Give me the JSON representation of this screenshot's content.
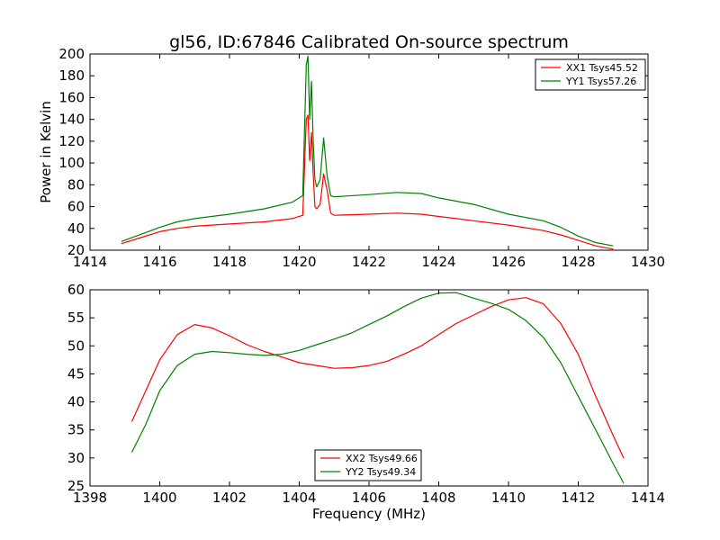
{
  "figure_title": "gl56, ID:67846 Calibrated On-source spectrum",
  "chart_data": [
    {
      "type": "line",
      "title": "gl56, ID:67846 Calibrated On-source spectrum",
      "xlabel": "",
      "ylabel": "Power in Kelvin",
      "xlim": [
        1414,
        1430
      ],
      "ylim": [
        20,
        200
      ],
      "xticks": [
        1414,
        1416,
        1418,
        1420,
        1422,
        1424,
        1426,
        1428,
        1430
      ],
      "yticks": [
        20,
        40,
        60,
        80,
        100,
        120,
        140,
        160,
        180,
        200
      ],
      "grid": false,
      "legend_position": "top-right",
      "series": [
        {
          "name": "XX1 Tsys45.52",
          "color": "#ff0000",
          "x": [
            1414.9,
            1415.5,
            1416.0,
            1416.5,
            1417.0,
            1418.0,
            1419.0,
            1419.8,
            1420.1,
            1420.2,
            1420.25,
            1420.3,
            1420.35,
            1420.4,
            1420.45,
            1420.5,
            1420.6,
            1420.7,
            1420.8,
            1420.9,
            1421.0,
            1422.0,
            1422.8,
            1423.5,
            1424.0,
            1425.0,
            1426.0,
            1427.0,
            1427.5,
            1428.0,
            1428.5,
            1429.0
          ],
          "y": [
            26,
            32,
            37,
            40,
            42,
            44,
            46,
            49,
            52,
            140,
            144,
            102,
            128,
            90,
            60,
            58,
            62,
            90,
            75,
            54,
            52,
            53,
            54,
            53,
            51,
            47,
            43,
            38,
            34,
            29,
            24,
            21
          ]
        },
        {
          "name": "YY1 Tsys57.26",
          "color": "#008000",
          "x": [
            1414.9,
            1415.5,
            1416.0,
            1416.5,
            1417.0,
            1418.0,
            1419.0,
            1419.8,
            1420.1,
            1420.2,
            1420.25,
            1420.3,
            1420.35,
            1420.4,
            1420.45,
            1420.5,
            1420.6,
            1420.7,
            1420.8,
            1420.9,
            1421.0,
            1422.0,
            1422.8,
            1423.5,
            1424.0,
            1425.0,
            1426.0,
            1427.0,
            1427.5,
            1428.0,
            1428.5,
            1429.0
          ],
          "y": [
            28,
            35,
            41,
            46,
            49,
            53,
            58,
            64,
            70,
            190,
            198,
            140,
            175,
            120,
            85,
            78,
            85,
            123,
            88,
            70,
            69,
            71,
            73,
            72,
            68,
            62,
            53,
            47,
            41,
            33,
            27,
            24
          ]
        }
      ]
    },
    {
      "type": "line",
      "title": "",
      "xlabel": "Frequency (MHz)",
      "ylabel": "",
      "xlim": [
        1398,
        1414
      ],
      "ylim": [
        25,
        60
      ],
      "xticks": [
        1398,
        1400,
        1402,
        1404,
        1406,
        1408,
        1410,
        1412,
        1414
      ],
      "yticks": [
        25,
        30,
        35,
        40,
        45,
        50,
        55,
        60
      ],
      "grid": false,
      "legend_position": "bottom-center",
      "series": [
        {
          "name": "XX2 Tsys49.66",
          "color": "#ff0000",
          "x": [
            1399.2,
            1399.6,
            1400.0,
            1400.5,
            1401.0,
            1401.5,
            1402.0,
            1402.5,
            1403.0,
            1403.5,
            1404.0,
            1404.5,
            1405.0,
            1405.5,
            1406.0,
            1406.5,
            1407.0,
            1407.5,
            1408.0,
            1408.5,
            1409.0,
            1409.5,
            1410.0,
            1410.5,
            1411.0,
            1411.5,
            1412.0,
            1412.5,
            1413.0,
            1413.3
          ],
          "y": [
            36.5,
            42,
            47.5,
            52,
            53.8,
            53.2,
            51.8,
            50.2,
            49.0,
            48.0,
            47.0,
            46.5,
            46.0,
            46.1,
            46.5,
            47.2,
            48.5,
            50.0,
            52.0,
            54.0,
            55.5,
            57.0,
            58.2,
            58.6,
            57.5,
            54.0,
            48.5,
            41.0,
            34.0,
            30.0
          ]
        },
        {
          "name": "YY2 Tsys49.34",
          "color": "#008000",
          "x": [
            1399.2,
            1399.6,
            1400.0,
            1400.5,
            1401.0,
            1401.5,
            1402.0,
            1402.5,
            1403.0,
            1403.5,
            1404.0,
            1404.5,
            1405.0,
            1405.5,
            1406.0,
            1406.5,
            1407.0,
            1407.5,
            1408.0,
            1408.5,
            1409.0,
            1409.5,
            1410.0,
            1410.5,
            1411.0,
            1411.5,
            1412.0,
            1412.5,
            1413.0,
            1413.3
          ],
          "y": [
            31,
            36,
            42,
            46.5,
            48.5,
            49.0,
            48.8,
            48.5,
            48.3,
            48.5,
            49.2,
            50.2,
            51.2,
            52.3,
            53.8,
            55.3,
            57.0,
            58.5,
            59.4,
            59.5,
            58.5,
            57.6,
            56.5,
            54.5,
            51.5,
            47.0,
            41.0,
            35.0,
            29.0,
            25.5
          ]
        }
      ]
    }
  ]
}
